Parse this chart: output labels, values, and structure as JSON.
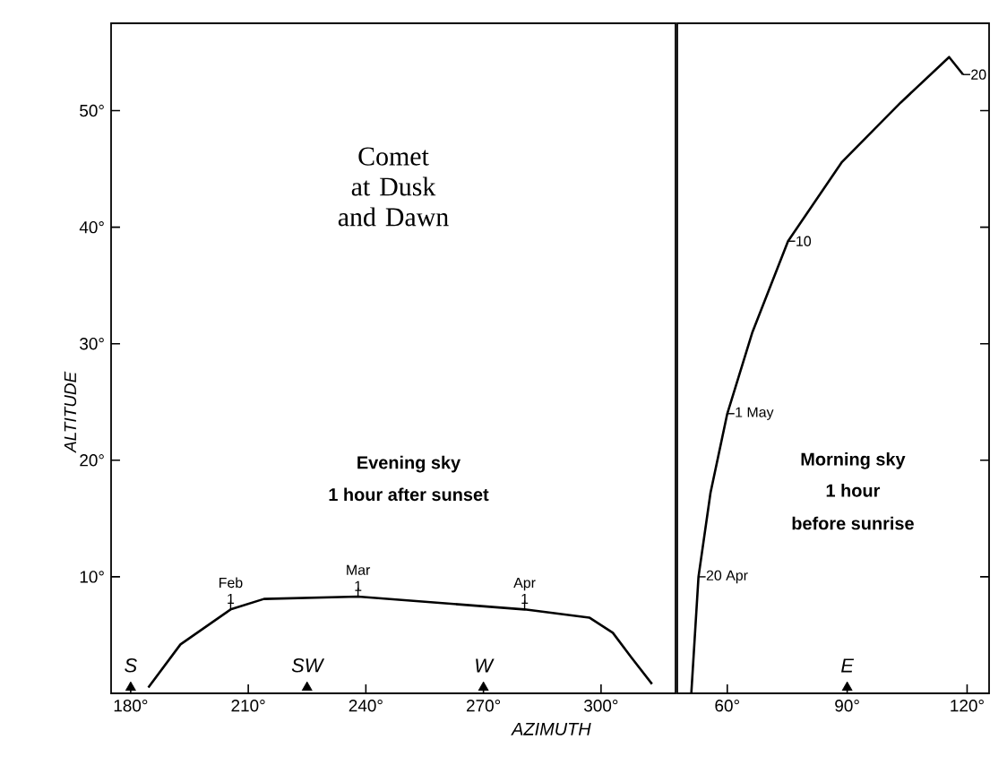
{
  "chart_data": [
    {
      "type": "line",
      "title": "Comet at Dusk and Dawn",
      "xlabel": "AZIMUTH",
      "ylabel": "ALTITUDE",
      "xlim": [
        175,
        319
      ],
      "ylim": [
        0,
        57.5
      ],
      "xticks": [
        {
          "value": 180,
          "label": "180°"
        },
        {
          "value": 210,
          "label": "210°"
        },
        {
          "value": 240,
          "label": "240°"
        },
        {
          "value": 270,
          "label": "270°"
        },
        {
          "value": 300,
          "label": "300°"
        }
      ],
      "yticks": [
        {
          "value": 10,
          "label": "10°"
        },
        {
          "value": 20,
          "label": "20°"
        },
        {
          "value": 30,
          "label": "30°"
        },
        {
          "value": 40,
          "label": "40°"
        },
        {
          "value": 50,
          "label": "50°"
        }
      ],
      "series": [
        {
          "color": "#000000",
          "x": [
            184.5,
            192.7,
            205.5,
            214,
            238,
            280.5,
            297,
            303,
            307.7,
            313
          ],
          "values": [
            0.5,
            4.2,
            7.2,
            8.1,
            8.3,
            7.2,
            6.5,
            5.2,
            3.1,
            0.8
          ]
        },
        {
          "type": "scatter",
          "color": "#000000",
          "marker": "triangle",
          "x": [
            180,
            225,
            270
          ],
          "values": [
            0.5,
            0.5,
            0.5
          ],
          "value_labels": [
            "S",
            "SW",
            "W"
          ]
        }
      ],
      "annotations": [
        "Evening sky",
        "1 hour after sunset",
        {
          "text": "Feb 1",
          "x": 205.5,
          "y": 7.2
        },
        {
          "text": "Mar 1",
          "x": 238,
          "y": 8.3
        },
        {
          "text": "Apr 1",
          "x": 280.5,
          "y": 7.2
        }
      ]
    },
    {
      "type": "line",
      "xlim": [
        47.5,
        125.5
      ],
      "ylim": [
        0,
        57.5
      ],
      "tick_labels": "x",
      "xticks": [
        {
          "value": 60,
          "label": "60°"
        },
        {
          "value": 90,
          "label": "90°"
        },
        {
          "value": 120,
          "label": "120°"
        }
      ],
      "yticks": [
        {
          "value": 10,
          "label": null
        },
        {
          "value": 20,
          "label": null
        },
        {
          "value": 30,
          "label": null
        },
        {
          "value": 40,
          "label": null
        },
        {
          "value": 50,
          "label": null
        }
      ],
      "series": [
        {
          "color": "#000000",
          "x": [
            51,
            52.8,
            55.8,
            60,
            66.3,
            75.2,
            88.7,
            103.4,
            115.5,
            119
          ],
          "values": [
            0,
            10,
            17.2,
            24,
            31,
            38.8,
            45.6,
            50.7,
            54.6,
            53.1
          ]
        },
        {
          "type": "scatter",
          "color": "#000000",
          "marker": "triangle",
          "x": [
            90
          ],
          "values": [
            0.5
          ],
          "value_labels": [
            "E"
          ]
        }
      ],
      "annotations": [
        "Morning sky",
        "1 hour",
        "before sunrise",
        {
          "text": "20 Apr",
          "x": 52.8,
          "y": 10
        },
        {
          "text": "1 May",
          "x": 60,
          "y": 24
        },
        {
          "text": "10",
          "x": 75.2,
          "y": 38.8
        },
        {
          "text": "20",
          "x": 119,
          "y": 53.1
        }
      ]
    }
  ]
}
